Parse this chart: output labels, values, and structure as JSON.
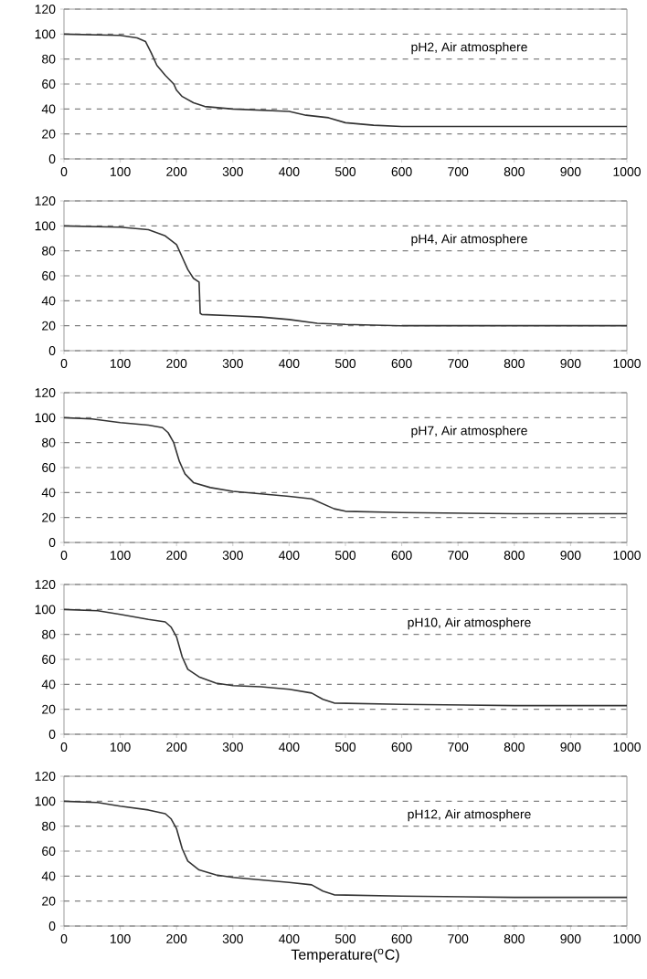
{
  "chart_data": [
    {
      "type": "line",
      "annotations": [
        "pH2, Air atmosphere"
      ],
      "x": [
        0,
        100,
        130,
        145,
        155,
        165,
        180,
        195,
        200,
        210,
        230,
        250,
        300,
        350,
        400,
        430,
        470,
        500,
        550,
        600,
        700,
        800,
        1000
      ],
      "series": [
        {
          "color": "#333333",
          "values": [
            100,
            99,
            97,
            94,
            85,
            75,
            67,
            60,
            55,
            50,
            45,
            42,
            40,
            39,
            38,
            35,
            33,
            29,
            27,
            26,
            26,
            26,
            26
          ]
        }
      ],
      "xlim": [
        0,
        1000
      ],
      "ylim": [
        0,
        120
      ],
      "xticks": [
        0,
        100,
        200,
        300,
        400,
        500,
        600,
        700,
        800,
        900,
        1000
      ],
      "yticks": [
        0,
        20,
        40,
        60,
        80,
        100,
        120
      ],
      "grid": "y",
      "line_style": "solid",
      "marker": "none"
    },
    {
      "type": "line",
      "annotations": [
        "pH4, Air atmosphere"
      ],
      "x": [
        0,
        100,
        150,
        180,
        200,
        210,
        220,
        230,
        240,
        242,
        245,
        300,
        350,
        400,
        450,
        500,
        600,
        800,
        1000
      ],
      "series": [
        {
          "color": "#333333",
          "values": [
            100,
            99,
            97,
            92,
            85,
            75,
            65,
            58,
            55,
            30,
            29,
            28,
            27,
            25,
            22,
            21,
            20,
            20,
            20
          ]
        }
      ],
      "xlim": [
        0,
        1000
      ],
      "ylim": [
        0,
        120
      ],
      "xticks": [
        0,
        100,
        200,
        300,
        400,
        500,
        600,
        700,
        800,
        900,
        1000
      ],
      "yticks": [
        0,
        20,
        40,
        60,
        80,
        100,
        120
      ],
      "grid": "y",
      "line_style": "solid",
      "marker": "none"
    },
    {
      "type": "line",
      "annotations": [
        "pH7, Air atmosphere"
      ],
      "x": [
        0,
        50,
        100,
        150,
        175,
        185,
        195,
        205,
        215,
        230,
        260,
        300,
        350,
        400,
        440,
        460,
        480,
        500,
        600,
        800,
        1000
      ],
      "series": [
        {
          "color": "#333333",
          "values": [
            100,
            99,
            96,
            94,
            92,
            88,
            80,
            65,
            55,
            48,
            44,
            41,
            39,
            37,
            35,
            31,
            27,
            25,
            24,
            23,
            23
          ]
        }
      ],
      "xlim": [
        0,
        1000
      ],
      "ylim": [
        0,
        120
      ],
      "xticks": [
        0,
        100,
        200,
        300,
        400,
        500,
        600,
        700,
        800,
        900,
        1000
      ],
      "yticks": [
        0,
        20,
        40,
        60,
        80,
        100,
        120
      ],
      "grid": "y",
      "line_style": "solid",
      "marker": "none"
    },
    {
      "type": "line",
      "annotations": [
        "pH10, Air atmosphere"
      ],
      "x": [
        0,
        60,
        100,
        150,
        180,
        190,
        200,
        210,
        220,
        240,
        270,
        300,
        350,
        400,
        440,
        460,
        480,
        600,
        800,
        1000
      ],
      "series": [
        {
          "color": "#333333",
          "values": [
            100,
            99,
            96,
            92,
            90,
            86,
            78,
            62,
            52,
            46,
            41,
            39,
            38,
            36,
            33,
            28,
            25,
            24,
            23,
            23
          ]
        }
      ],
      "xlim": [
        0,
        1000
      ],
      "ylim": [
        0,
        120
      ],
      "xticks": [
        0,
        100,
        200,
        300,
        400,
        500,
        600,
        700,
        800,
        900,
        1000
      ],
      "yticks": [
        0,
        20,
        40,
        60,
        80,
        100,
        120
      ],
      "grid": "y",
      "line_style": "solid",
      "marker": "none"
    },
    {
      "type": "line",
      "annotations": [
        "pH12, Air atmosphere"
      ],
      "xlabel": "Temperature($^{o}$C)",
      "x": [
        0,
        60,
        100,
        150,
        180,
        190,
        200,
        210,
        220,
        240,
        270,
        300,
        350,
        400,
        440,
        460,
        480,
        600,
        800,
        1000
      ],
      "series": [
        {
          "color": "#333333",
          "values": [
            100,
            99,
            96,
            93,
            90,
            86,
            78,
            62,
            52,
            45,
            41,
            39,
            37,
            35,
            33,
            28,
            25,
            24,
            23,
            23
          ]
        }
      ],
      "xlim": [
        0,
        1000
      ],
      "ylim": [
        0,
        120
      ],
      "xticks": [
        0,
        100,
        200,
        300,
        400,
        500,
        600,
        700,
        800,
        900,
        1000
      ],
      "yticks": [
        0,
        20,
        40,
        60,
        80,
        100,
        120
      ],
      "grid": "y",
      "line_style": "solid",
      "marker": "none"
    }
  ]
}
